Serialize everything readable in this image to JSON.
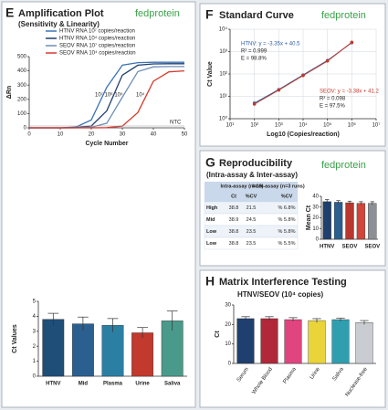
{
  "brand": "fedprotein",
  "chart_data": [
    {
      "type": "line",
      "panel": "E",
      "title": "Amplification Plot",
      "subtitle": "(Sensitivity & Linearity)",
      "x_label": "Cycle Number",
      "y_label": "ΔRn",
      "x": [
        0,
        5,
        10,
        15,
        20,
        25,
        30,
        35,
        40,
        45,
        50
      ],
      "series": [
        {
          "name": "HTNV RNA 10⁷ copies/reaction",
          "color": "#3b72b8",
          "values": [
            0,
            0,
            0,
            5,
            55,
            285,
            440,
            458,
            460,
            460,
            460
          ]
        },
        {
          "name": "HTNV RNA 10⁴ copies/reaction",
          "color": "#1f3f6e",
          "values": [
            0,
            0,
            0,
            1,
            13,
            120,
            370,
            440,
            449,
            450,
            450
          ]
        },
        {
          "name": "SEOV RNA 10⁷ copies/reaction",
          "color": "#6d8fb5",
          "values": [
            0,
            0,
            0,
            0,
            3,
            33,
            215,
            395,
            428,
            430,
            430
          ]
        },
        {
          "name": "SEOV RNA 10⁴ copies/reaction",
          "color": "#d63a2f",
          "values": [
            0,
            0,
            0,
            0,
            0,
            1,
            12,
            108,
            327,
            393,
            400
          ]
        }
      ],
      "annotations": [
        "10⁷ 10⁶ 10⁵",
        "10⁴",
        "NTC"
      ],
      "xlim": [
        0,
        50
      ],
      "xticks": [
        0,
        10,
        20,
        30,
        40,
        50
      ],
      "ylim": [
        0,
        500
      ],
      "yticks": [
        0,
        100,
        200,
        300,
        400,
        500
      ]
    },
    {
      "type": "bar",
      "y_label": "Ct Values",
      "categories": [
        "HTNV",
        "Mid",
        "Plasma",
        "Urine",
        "Saliva"
      ],
      "values": [
        3.8,
        3.5,
        3.4,
        2.9,
        3.7
      ],
      "errors": [
        0.4,
        0.45,
        0.45,
        0.35,
        0.65
      ],
      "colors": [
        "#1f4e79",
        "#2b5f8f",
        "#2b7fa3",
        "#c2392d",
        "#4a9a8c"
      ],
      "ylim": [
        0,
        5
      ],
      "yticks": [
        0,
        1,
        2,
        3,
        4,
        5
      ]
    },
    {
      "type": "scatter",
      "panel": "F",
      "title": "Standard Curve",
      "x_label": "Log10 (Copies/reaction)",
      "y_label": "Ct Value",
      "log_x": true,
      "log_y": true,
      "grid": true,
      "series": [
        {
          "name": "HTNV",
          "color": "#2e5fa8",
          "x": [
            100,
            1000,
            10000,
            100000,
            1000000
          ],
          "values": [
            5,
            20,
            90,
            400,
            2500
          ]
        },
        {
          "name": "SEOV",
          "color": "#c0392b",
          "x": [
            100,
            1000,
            10000,
            100000,
            1000000
          ],
          "values": [
            4.5,
            19,
            85,
            380,
            2600
          ]
        }
      ],
      "annotations": [
        "HTNV: y = -3.35x + 40.5",
        "R² = 0.999",
        "E = 98.8%",
        "SEOV: y = -3.38x + 41.2",
        "R² = 0.098",
        "E = 97.5%"
      ],
      "xlim": [
        10,
        10000000
      ],
      "xticks": [
        {
          "value": 10,
          "label": "10¹"
        },
        {
          "value": 100,
          "label": "10²"
        },
        {
          "value": 1000,
          "label": "10³"
        },
        {
          "value": 10000,
          "label": "10⁴"
        },
        {
          "value": 100000,
          "label": "10⁵"
        },
        {
          "value": 1000000,
          "label": "10⁶"
        },
        {
          "value": 10000000,
          "label": "10⁷"
        }
      ],
      "ylim": [
        1,
        10000
      ],
      "yticks": [
        {
          "value": 1,
          "label": "10⁰"
        },
        {
          "value": 10,
          "label": "10¹"
        },
        {
          "value": 100,
          "label": "10²"
        },
        {
          "value": 1000,
          "label": "10³"
        },
        {
          "value": 10000,
          "label": "10⁴"
        }
      ]
    },
    {
      "type": "bar",
      "panel": "G",
      "title": "Reproducibility",
      "subtitle": "(Intra-assay & Inter-assay)",
      "y_label": "Mean Ct",
      "categories": [
        "HTNV",
        null,
        "SEOV",
        null,
        "SEOV"
      ],
      "values": [
        35,
        34.5,
        34,
        33.5,
        33.5
      ],
      "errors": [
        2,
        1.5,
        1.5,
        1.5,
        1.5
      ],
      "colors": [
        "#1f3f6e",
        "#2b5f8f",
        "#b8372f",
        "#d2453a",
        "#8c9096"
      ],
      "ylim": [
        0,
        40
      ],
      "yticks": [
        0,
        10,
        20,
        30,
        40
      ]
    },
    {
      "type": "bar",
      "panel": "H",
      "title": "Matrix Interference Testing",
      "subtitle": "HTNV/SEOV (10⁴ copies)",
      "y_label": "Ct",
      "categories": [
        "Serum",
        "Whole Blood",
        "Plasma",
        "Urine",
        "Saliva",
        "Nuclease-free"
      ],
      "values": [
        23,
        23,
        22.5,
        22,
        22.5,
        21
      ],
      "errors": [
        1,
        1,
        1,
        1,
        0.8,
        1
      ],
      "colors": [
        "#1f3f6e",
        "#b0283a",
        "#e0457f",
        "#e9d43a",
        "#2f9fb0",
        "#c9ccd1"
      ],
      "ylim": [
        0,
        30
      ],
      "yticks": [
        0,
        10,
        20,
        30
      ]
    }
  ],
  "table": {
    "columns": [
      "Intra-assay (n=10)",
      "Inter-assay (n=3 runs)"
    ],
    "subheader": [
      "Ct",
      "%CV",
      "%CV"
    ],
    "rows": [
      [
        "High",
        "38.8",
        "21.5",
        "% 6.8%"
      ],
      [
        "Mid",
        "38.9",
        "24.5",
        "% 5.8%"
      ],
      [
        "Low",
        "38.8",
        "23.5",
        "% 5.8%"
      ],
      [
        "Low",
        "38.8",
        "23.5",
        "% 5.5%"
      ]
    ]
  }
}
